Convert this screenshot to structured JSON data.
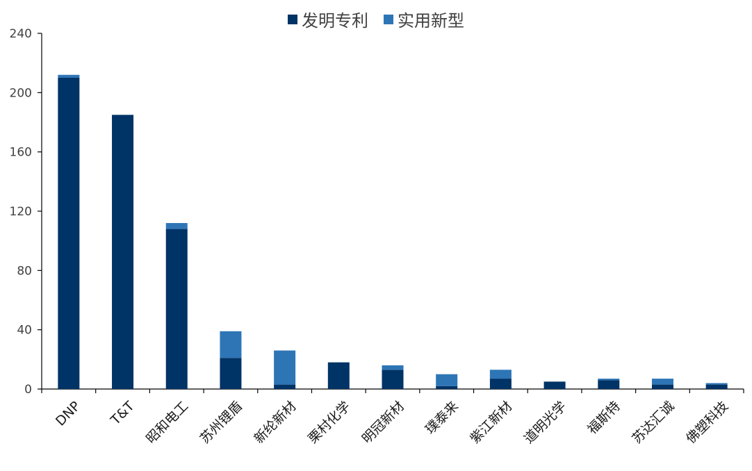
{
  "chart_data": {
    "type": "bar",
    "stacked": true,
    "title": "",
    "xlabel": "",
    "ylabel": "",
    "ylim": [
      0,
      240
    ],
    "yticks": [
      0,
      40,
      80,
      120,
      160,
      200,
      240
    ],
    "grid": false,
    "legend_position": "top-center",
    "categories": [
      "DNP",
      "T&T",
      "昭和电工",
      "苏州锂盾",
      "新纶新材",
      "栗村化学",
      "明冠新材",
      "璞泰来",
      "紫江新材",
      "道明光学",
      "福斯特",
      "苏达汇诚",
      "佛塑科技"
    ],
    "series": [
      {
        "name": "发明专利",
        "color": "#003366",
        "values": [
          210,
          185,
          108,
          21,
          3,
          18,
          13,
          2,
          7,
          5,
          6,
          3,
          3
        ]
      },
      {
        "name": "实用新型",
        "color": "#2E75B6",
        "values": [
          2,
          0,
          4,
          18,
          23,
          0,
          3,
          8,
          6,
          0,
          1,
          4,
          1
        ]
      }
    ]
  }
}
